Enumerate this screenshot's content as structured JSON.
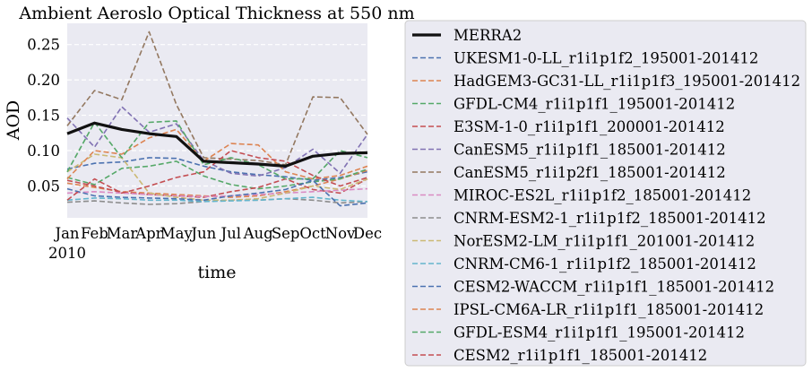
{
  "chart_data": {
    "type": "line",
    "title": "Ambient Aeroslo Optical Thickness at 550 nm",
    "xlabel": "time",
    "ylabel": "AOD",
    "categories": [
      "Jan",
      "Feb",
      "Mar",
      "Apr",
      "May",
      "Jun",
      "Jul",
      "Aug",
      "Sep",
      "Oct",
      "Nov",
      "Dec"
    ],
    "x_year_label": "2010",
    "xlim": [
      0,
      11
    ],
    "ylim": [
      0.005,
      0.28
    ],
    "yticks": [
      0.05,
      0.1,
      0.15,
      0.2,
      0.25
    ],
    "ytick_labels": [
      "0.05",
      "0.10",
      "0.15",
      "0.20",
      "0.25"
    ],
    "grid": true,
    "legend_position": "right, outside plot",
    "series": [
      {
        "name": "MERRA2",
        "color": "#111111",
        "style": "solid",
        "values": [
          0.124,
          0.139,
          0.13,
          0.124,
          0.12,
          0.085,
          0.083,
          0.081,
          0.078,
          0.092,
          0.096,
          0.097
        ]
      },
      {
        "name": "UKESM1-0-LL_r1i1p1f2_195001-201412",
        "color": "#4c72b0",
        "style": "dashed",
        "values": [
          0.074,
          0.082,
          0.084,
          0.09,
          0.089,
          0.078,
          0.07,
          0.066,
          0.063,
          0.058,
          0.062,
          0.07
        ]
      },
      {
        "name": "HadGEM3-GC31-LL_r1i1p1f3_195001-201412",
        "color": "#dd8452",
        "style": "dashed",
        "values": [
          0.054,
          0.048,
          0.042,
          0.04,
          0.038,
          0.036,
          0.034,
          0.036,
          0.042,
          0.05,
          0.06,
          0.072
        ]
      },
      {
        "name": "GFDL-CM4_r1i1p1f1_195001-201412",
        "color": "#55a868",
        "style": "dashed",
        "values": [
          0.062,
          0.052,
          0.075,
          0.078,
          0.085,
          0.064,
          0.052,
          0.046,
          0.05,
          0.056,
          0.06,
          0.074
        ]
      },
      {
        "name": "E3SM-1-0_r1i1p1f1_200001-201412",
        "color": "#c44e52",
        "style": "dashed",
        "values": [
          0.058,
          0.05,
          0.041,
          0.038,
          0.036,
          0.034,
          0.042,
          0.048,
          0.06,
          0.045,
          0.04,
          0.06
        ]
      },
      {
        "name": "CanESM5_r1i1p1f1_185001-201412",
        "color": "#8172b3",
        "style": "dashed",
        "values": [
          0.146,
          0.105,
          0.162,
          0.126,
          0.138,
          0.086,
          0.068,
          0.064,
          0.076,
          0.102,
          0.068,
          0.123
        ]
      },
      {
        "name": "CanESM5_r1i1p2f1_185001-201412",
        "color": "#937860",
        "style": "dashed",
        "values": [
          0.135,
          0.185,
          0.172,
          0.268,
          0.165,
          0.09,
          0.088,
          0.086,
          0.08,
          0.176,
          0.175,
          0.123
        ]
      },
      {
        "name": "MIROC-ES2L_r1i1p1f2_185001-201412",
        "color": "#da8bc3",
        "style": "dashed",
        "values": [
          0.04,
          0.042,
          0.04,
          0.038,
          0.036,
          0.035,
          0.036,
          0.038,
          0.04,
          0.042,
          0.044,
          0.046
        ]
      },
      {
        "name": "CNRM-ESM2-1_r1i1p1f2_185001-201412",
        "color": "#8c8c8c",
        "style": "dashed",
        "values": [
          0.027,
          0.029,
          0.026,
          0.024,
          0.025,
          0.028,
          0.03,
          0.03,
          0.032,
          0.03,
          0.026,
          0.028
        ]
      },
      {
        "name": "NorESM2-LM_r1i1p1f1_201001-201412",
        "color": "#ccb974",
        "style": "dashed",
        "values": [
          0.07,
          0.095,
          0.09,
          0.04,
          0.034,
          0.03,
          0.03,
          0.032,
          0.04,
          0.05,
          0.045,
          0.06
        ]
      },
      {
        "name": "CNRM-CM6-1_r1i1p1f2_185001-201412",
        "color": "#64b5cd",
        "style": "dashed",
        "values": [
          0.03,
          0.033,
          0.032,
          0.03,
          0.03,
          0.028,
          0.029,
          0.03,
          0.032,
          0.034,
          0.03,
          0.028
        ]
      },
      {
        "name": "CESM2-WACCM_r1i1p1f1_185001-201412",
        "color": "#4c72b0",
        "style": "dashed",
        "values": [
          0.046,
          0.036,
          0.034,
          0.033,
          0.032,
          0.03,
          0.036,
          0.04,
          0.045,
          0.058,
          0.022,
          0.026
        ]
      },
      {
        "name": "IPSL-CM6A-LR_r1i1p1f1_185001-201412",
        "color": "#dd8452",
        "style": "dashed",
        "values": [
          0.06,
          0.1,
          0.095,
          0.118,
          0.13,
          0.085,
          0.11,
          0.108,
          0.07,
          0.06,
          0.065,
          0.078
        ]
      },
      {
        "name": "GFDL-ESM4_r1i1p1f1_195001-201412",
        "color": "#55a868",
        "style": "dashed",
        "values": [
          0.07,
          0.14,
          0.09,
          0.14,
          0.142,
          0.08,
          0.09,
          0.08,
          0.06,
          0.06,
          0.1,
          0.09
        ]
      },
      {
        "name": "CESM2_r1i1p1f1_185001-201412",
        "color": "#c44e52",
        "style": "dashed",
        "values": [
          0.03,
          0.06,
          0.04,
          0.05,
          0.062,
          0.07,
          0.1,
          0.09,
          0.085,
          0.065,
          0.05,
          0.062
        ]
      }
    ]
  }
}
